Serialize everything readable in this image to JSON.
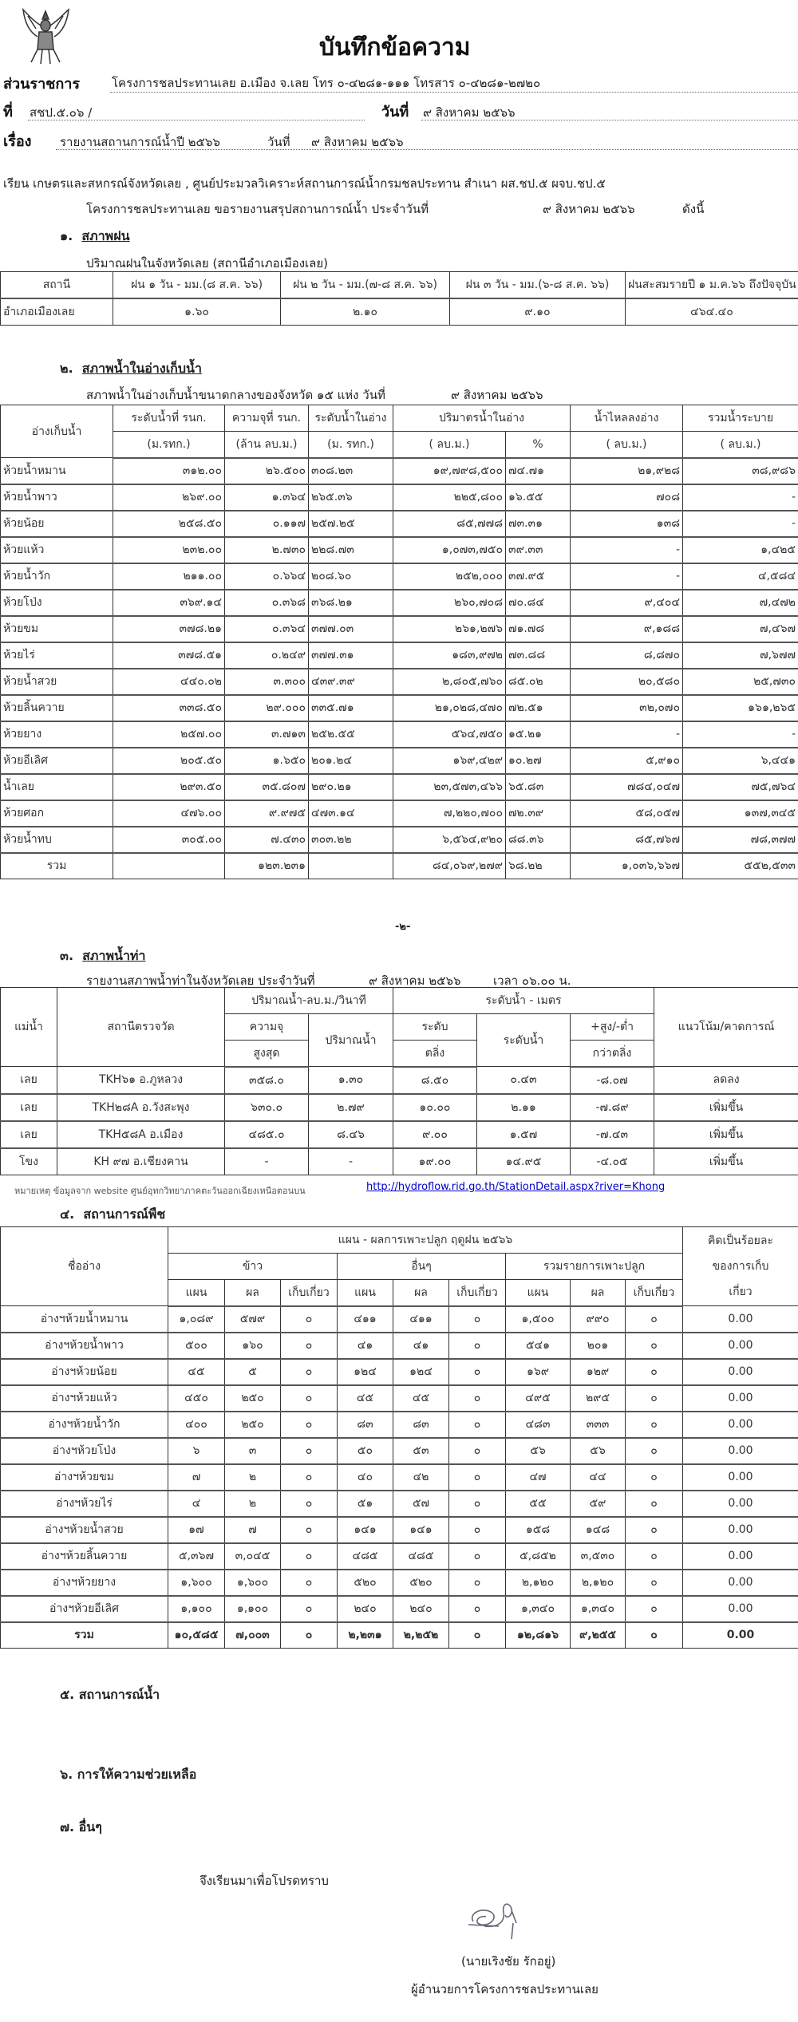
{
  "header": {
    "title": "บันทึกข้อความ",
    "emblem": "ครุฑ",
    "agency_label": "ส่วนราชการ",
    "agency_value": "โครงการชลประทานเลย  อ.เมือง จ.เลย  โทร ๐-๔๒๘๑-๑๑๑ โทรสาร ๐-๔๒๘๑-๒๗๒๐",
    "ref_label": "ที่",
    "ref_value": "สชป.๕.๐๖ /",
    "date_label": "วันที่",
    "date_value": "๙ สิงหาคม ๒๕๖๖",
    "subject_label": "เรื่อง",
    "subject_value": "รายงานสถานการณ์น้ำปี ๒๕๖๖",
    "subject_date_label": "วันที่",
    "subject_date_value": "๙ สิงหาคม ๒๕๖๖"
  },
  "intro": {
    "to": "เรียน เกษตรและสหกรณ์จังหวัดเลย , ศูนย์ประมวลวิเคราะห์สถานการณ์น้ำกรมชลประทาน  สำเนา  ผส.ชป.๕  ผจบ.ชป.๕",
    "body": "โครงการชลประทานเลย  ขอรายงานสรุปสถานการณ์น้ำ ประจำวันที่",
    "date": "๙ สิงหาคม ๒๕๖๖",
    "suffix": "ดังนี้"
  },
  "rain": {
    "heading_no": "๑.",
    "heading": "สภาพฝน",
    "caption": "ปริมาณฝนในจังหวัดเลย  (สถานีอำเภอเมืองเลย)",
    "columns": [
      "สถานี",
      "ฝน ๑ วัน - มม.(๘ ส.ค. ๖๖)",
      "ฝน ๒ วัน - มม.(๗-๘ ส.ค. ๖๖)",
      "ฝน ๓ วัน - มม.(๖-๘ ส.ค. ๖๖)",
      "ฝนสะสมรายปี ๑ ม.ค.๖๖ ถึงปัจจุบัน"
    ],
    "rows": [
      [
        "อำเภอเมืองเลย",
        "๑.๖๐",
        "๒.๑๐",
        "๙.๑๐",
        "๔๖๔.๔๐"
      ]
    ]
  },
  "reservoir": {
    "heading_no": "๒.",
    "heading": "สภาพน้ำในอ่างเก็บน้ำ",
    "caption": "สภาพน้ำในอ่างเก็บน้ำขนาดกลางของจังหวัด  ๑๕  แห่ง  วันที่",
    "caption_date": "๙ สิงหาคม ๒๕๖๖",
    "head": {
      "name": "อ่างเก็บน้ำ",
      "c1a": "ระดับน้ำที่ รนก.",
      "c1b": "(ม.รทก.)",
      "c2a": "ความจุที่ รนก.",
      "c2b": "(ล้าน ลบ.ม.)",
      "c3a": "ระดับน้ำในอ่าง",
      "c3b": "(ม. รทก.)",
      "c4": "ปริมาตรน้ำในอ่าง",
      "c4a": "( ลบ.ม.)",
      "c4b": "%",
      "c5a": "น้ำไหลลงอ่าง",
      "c5b": "( ลบ.ม.)",
      "c6a": "รวมน้ำระบาย",
      "c6b": "( ลบ.ม.)"
    },
    "rows": [
      [
        "ห้วยน้ำหมาน",
        "๓๑๒.๐๐",
        "๒๖.๕๐๐",
        "๓๐๘.๒๓",
        "๑๙,๗๙๘,๕๐๐",
        "๗๔.๗๑",
        "๒๑,๙๒๘",
        "๓๘,๙๘๖"
      ],
      [
        "ห้วยน้ำพาว",
        "๒๖๙.๐๐",
        "๑.๓๖๔",
        "๒๖๕.๓๖",
        "๒๒๕,๘๐๐",
        "๑๖.๕๕",
        "๗๐๘",
        "-"
      ],
      [
        "ห้วยน้อย",
        "๒๕๘.๕๐",
        "๐.๑๑๗",
        "๒๕๗.๒๕",
        "๘๕,๗๗๘",
        "๗๓.๓๑",
        "๑๓๘",
        "-"
      ],
      [
        "ห้วยแห้ว",
        "๒๓๒.๐๐",
        "๒.๗๓๐",
        "๒๒๘.๗๓",
        "๑,๐๗๓,๗๕๐",
        "๓๙.๓๓",
        "-",
        "๑,๔๒๕"
      ],
      [
        "ห้วยน้ำวัก",
        "๒๑๑.๐๐",
        "๐.๖๖๔",
        "๒๐๘.๖๐",
        "๒๕๒,๐๐๐",
        "๓๗.๙๕",
        "-",
        "๔,๕๘๔"
      ],
      [
        "ห้วยโป่ง",
        "๓๖๙.๑๔",
        "๐.๓๖๘",
        "๓๖๘.๒๑",
        "๒๖๐,๗๐๘",
        "๗๐.๘๔",
        "๙,๔๐๔",
        "๗,๔๗๒"
      ],
      [
        "ห้วยขม",
        "๓๗๘.๒๑",
        "๐.๓๖๔",
        "๓๗๗.๐๓",
        "๒๖๑,๒๗๖",
        "๗๑.๗๘",
        "๙,๑๘๘",
        "๗,๔๖๗"
      ],
      [
        "ห้วยไร่",
        "๓๗๘.๕๑",
        "๐.๒๔๙",
        "๓๗๗.๓๑",
        "๑๘๓,๙๗๒",
        "๗๓.๘๘",
        "๘,๘๗๐",
        "๗,๖๗๗"
      ],
      [
        "ห้วยน้ำสวย",
        "๔๔๐.๐๒",
        "๓.๓๐๐",
        "๔๓๙.๓๙",
        "๒,๘๐๕,๗๖๐",
        "๘๕.๐๒",
        "๒๐,๕๘๐",
        "๒๕,๗๓๐"
      ],
      [
        "ห้วยลิ้นควาย",
        "๓๓๘.๕๐",
        "๒๙.๐๐๐",
        "๓๓๕.๗๑",
        "๒๑,๐๒๘,๔๗๐",
        "๗๒.๕๑",
        "๓๒,๐๗๐",
        "๑๖๑,๒๖๕"
      ],
      [
        "ห้วยยาง",
        "๒๕๗.๐๐",
        "๓.๗๑๓",
        "๒๕๒.๕๕",
        "๕๖๔,๗๕๐",
        "๑๕.๒๑",
        "-",
        "-"
      ],
      [
        "ห้วยอีเลิศ",
        "๒๐๕.๕๐",
        "๑.๖๕๐",
        "๒๐๑.๒๔",
        "๑๖๙,๔๒๙",
        "๑๐.๒๗",
        "๕,๙๑๐",
        "๖,๔๔๑"
      ],
      [
        "น้ำเลย",
        "๒๙๓.๕๐",
        "๓๕.๘๐๗",
        "๒๙๐.๒๑",
        "๒๓,๕๗๓,๔๖๖",
        "๖๕.๘๓",
        "๗๘๔,๐๔๗",
        "๗๕,๗๖๔"
      ],
      [
        "ห้วยศอก",
        "๔๗๖.๐๐",
        "๙.๙๗๕",
        "๔๗๓.๑๔",
        "๗,๒๒๐,๗๐๐",
        "๗๒.๓๙",
        "๕๘,๐๕๗",
        "๑๓๗,๓๔๕"
      ],
      [
        "ห้วยน้ำทบ",
        "๓๐๕.๐๐",
        "๗.๔๓๐",
        "๓๐๓.๒๒",
        "๖,๕๖๔,๙๒๐",
        "๘๘.๓๖",
        "๘๕,๗๖๗",
        "๗๘,๓๗๗"
      ]
    ],
    "total": [
      "รวม",
      "",
      "๑๒๓.๒๓๑",
      "",
      "๘๔,๐๖๙,๒๗๙",
      "๖๘.๒๒",
      "๑,๐๓๖,๖๖๗",
      "๕๕๒,๕๓๓"
    ]
  },
  "page_number": "-๒-",
  "river": {
    "heading_no": "๓.",
    "heading": "สภาพน้ำท่า",
    "caption": "รายงานสภาพน้ำท่าในจังหวัดเลย  ประจำวันที่",
    "caption_date": "๙ สิงหาคม ๒๕๖๖",
    "caption_time": "เวลา ๐๖.๐๐ น.",
    "head": {
      "river": "แม่น้ำ",
      "station": "สถานีตรวจวัด",
      "flow": "ปริมาณน้ำ-ลบ.ม./วินาที",
      "flow_cap_a": "ความจุ",
      "flow_cap_b": "สูงสุด",
      "flow_val": "ปริมาณน้ำ",
      "level": "ระดับน้ำ - เมตร",
      "bank_a": "ระดับ",
      "bank_b": "ตลิ่ง",
      "level_val": "ระดับน้ำ",
      "diff_a": "+สูง/-ต่ำ",
      "diff_b": "กว่าตลิ่ง",
      "trend": "แนวโน้ม/คาดการณ์"
    },
    "rows": [
      [
        "เลย",
        "TKH๖๑ อ.ภูหลวง",
        "๓๕๘.๐",
        "๑.๓๐",
        "๘.๕๐",
        "๐.๔๓",
        "-๘.๐๗",
        "ลดลง"
      ],
      [
        "เลย",
        "TKH๒๘A อ.วังสะพุง",
        "๖๓๐.๐",
        "๒.๗๙",
        "๑๐.๐๐",
        "๒.๑๑",
        "-๗.๘๙",
        "เพิ่มขึ้น"
      ],
      [
        "เลย",
        "TKH๕๘A อ.เมือง",
        "๔๘๕.๐",
        "๘.๔๖",
        "๙.๐๐",
        "๑.๕๗",
        "-๗.๔๓",
        "เพิ่มขึ้น"
      ],
      [
        "โขง",
        "KH ๙๗ อ.เชียงคาน",
        "-",
        "-",
        "๑๙.๐๐",
        "๑๔.๙๕",
        "-๔.๐๕",
        "เพิ่มขึ้น"
      ]
    ],
    "note": "หมายเหตุ ข้อมูลจาก website ศูนย์อุทกวิทยาภาคตะวันออกเฉียงเหนือตอนบน",
    "link": "http://hydroflow.rid.go.th/StationDetail.aspx?river=Khong"
  },
  "crops": {
    "heading_no": "๔.",
    "heading": "สถานการณ์พืช",
    "head": {
      "name": "ชื่ออ่าง",
      "plan": "แผน - ผลการเพาะปลูก ฤดูฝน  ๒๕๖๖",
      "rice": "ข้าว",
      "other": "อื่นๆ",
      "sum": "รวมรายการเพาะปลูก",
      "pct_a": "คิดเป็นร้อยละ",
      "pct_b": "ของการเก็บ",
      "pct_c": "เกี่ยว",
      "sub": [
        "แผน",
        "ผล",
        "เก็บเกี่ยว",
        "แผน",
        "ผล",
        "เก็บเกี่ยว",
        "แผน",
        "ผล",
        "เก็บเกี่ยว"
      ]
    },
    "rows": [
      [
        "อ่างฯห้วยน้ำหมาน",
        "๑,๐๘๙",
        "๕๗๙",
        "๐",
        "๔๑๑",
        "๔๑๑",
        "๐",
        "๑,๕๐๐",
        "๙๙๐",
        "๐",
        "0.00"
      ],
      [
        "อ่างฯห้วยน้ำพาว",
        "๕๐๐",
        "๑๖๐",
        "๐",
        "๔๑",
        "๔๑",
        "๐",
        "๕๔๑",
        "๒๐๑",
        "๐",
        "0.00"
      ],
      [
        "อ่างฯห้วยน้อย",
        "๔๕",
        "๕",
        "๐",
        "๑๒๔",
        "๑๒๔",
        "๐",
        "๑๖๙",
        "๑๒๙",
        "๐",
        "0.00"
      ],
      [
        "อ่างฯห้วยแห้ว",
        "๔๕๐",
        "๒๕๐",
        "๐",
        "๔๕",
        "๔๕",
        "๐",
        "๔๙๕",
        "๒๙๕",
        "๐",
        "0.00"
      ],
      [
        "อ่างฯห้วยน้ำวัก",
        "๔๐๐",
        "๒๕๐",
        "๐",
        "๘๓",
        "๘๓",
        "๐",
        "๔๘๓",
        "๓๓๓",
        "๐",
        "0.00"
      ],
      [
        "อ่างฯห้วยโป่ง",
        "๖",
        "๓",
        "๐",
        "๕๐",
        "๕๓",
        "๐",
        "๕๖",
        "๕๖",
        "๐",
        "0.00"
      ],
      [
        "อ่างฯห้วยขม",
        "๗",
        "๒",
        "๐",
        "๔๐",
        "๔๒",
        "๐",
        "๔๗",
        "๔๔",
        "๐",
        "0.00"
      ],
      [
        "อ่างฯห้วยไร่",
        "๔",
        "๒",
        "๐",
        "๕๑",
        "๕๗",
        "๐",
        "๕๕",
        "๕๙",
        "๐",
        "0.00"
      ],
      [
        "อ่างฯห้วยน้ำสวย",
        "๑๗",
        "๗",
        "๐",
        "๑๔๑",
        "๑๔๑",
        "๐",
        "๑๕๘",
        "๑๔๘",
        "๐",
        "0.00"
      ],
      [
        "อ่างฯห้วยลิ้นควาย",
        "๕,๓๖๗",
        "๓,๐๔๕",
        "๐",
        "๔๘๕",
        "๔๘๕",
        "๐",
        "๕,๘๕๒",
        "๓,๕๓๐",
        "๐",
        "0.00"
      ],
      [
        "อ่างฯห้วยยาง",
        "๑,๖๐๐",
        "๑,๖๐๐",
        "๐",
        "๕๒๐",
        "๕๒๐",
        "๐",
        "๒,๑๒๐",
        "๒,๑๒๐",
        "๐",
        "0.00"
      ],
      [
        "อ่างฯห้วยอีเลิศ",
        "๑,๑๐๐",
        "๑,๑๐๐",
        "๐",
        "๒๔๐",
        "๒๔๐",
        "๐",
        "๑,๓๔๐",
        "๑,๓๔๐",
        "๐",
        "0.00"
      ]
    ],
    "total": [
      "รวม",
      "๑๐,๕๘๕",
      "๗,๐๐๓",
      "๐",
      "๒,๒๓๑",
      "๒,๒๕๒",
      "๐",
      "๑๒,๘๑๖",
      "๙,๒๕๕",
      "๐",
      "0.00"
    ]
  },
  "sections": {
    "s5": "๕.  สถานการณ์น้ำ",
    "s6": "๖.  การให้ความช่วยเหลือ",
    "s7": "๗.  อื่นๆ"
  },
  "closing": {
    "text": "จึงเรียนมาเพื่อโปรดทราบ",
    "signer_name": "(นายเริงชัย  รักอยู่)",
    "signer_title": "ผู้อำนวยการโครงการชลประทานเลย"
  }
}
